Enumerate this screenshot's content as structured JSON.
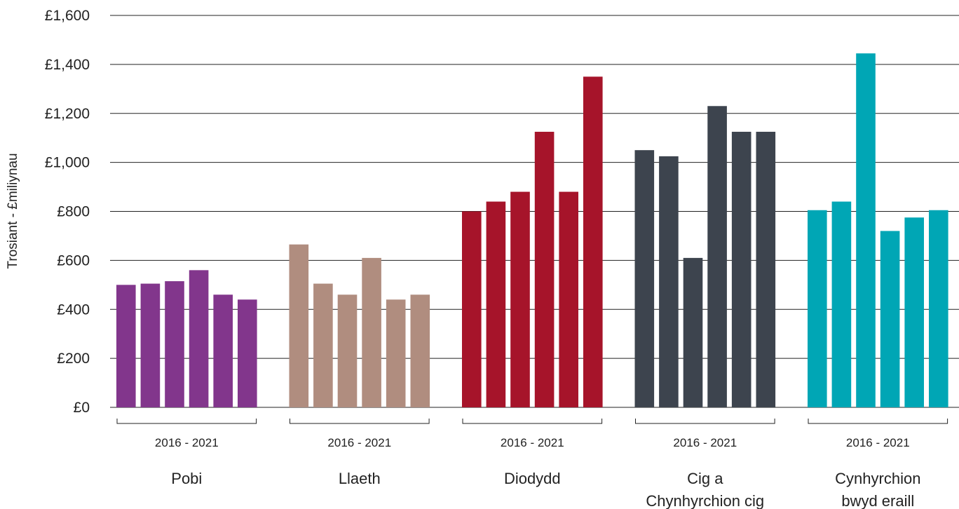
{
  "chart_data": {
    "type": "bar",
    "title": "",
    "ylabel": "Trosiant - £miliynau",
    "ylim": [
      0,
      1600
    ],
    "yticks": [
      0,
      200,
      400,
      600,
      800,
      1000,
      1200,
      1400,
      1600
    ],
    "ytick_labels": [
      "£0",
      "£200",
      "£400",
      "£600",
      "£800",
      "£1,000",
      "£1,200",
      "£1,400",
      "£1,600"
    ],
    "grid": true,
    "groups": [
      {
        "name": "Pobi",
        "name_lines": [
          "Pobi"
        ],
        "range_label": "2016 - 2021",
        "color": "#82368c",
        "values": [
          500,
          505,
          515,
          560,
          460,
          440
        ]
      },
      {
        "name": "Llaeth",
        "name_lines": [
          "Llaeth"
        ],
        "range_label": "2016 - 2021",
        "color": "#b08d7f",
        "values": [
          665,
          505,
          460,
          610,
          440,
          460
        ]
      },
      {
        "name": "Diodydd",
        "name_lines": [
          "Diodydd"
        ],
        "range_label": "2016 - 2021",
        "color": "#a6142a",
        "values": [
          800,
          840,
          880,
          1125,
          880,
          1350
        ]
      },
      {
        "name": "Cig a Chynhyrchion cig",
        "name_lines": [
          "Cig a",
          "Chynhyrchion cig"
        ],
        "range_label": "2016 - 2021",
        "color": "#3d444e",
        "values": [
          1050,
          1025,
          610,
          1230,
          1125,
          1125
        ]
      },
      {
        "name": "Cynhyrchion bwyd eraill",
        "name_lines": [
          "Cynhyrchion",
          "bwyd eraill"
        ],
        "range_label": "2016 - 2021",
        "color": "#00a6b5",
        "values": [
          805,
          840,
          1445,
          720,
          775,
          805
        ]
      }
    ]
  }
}
